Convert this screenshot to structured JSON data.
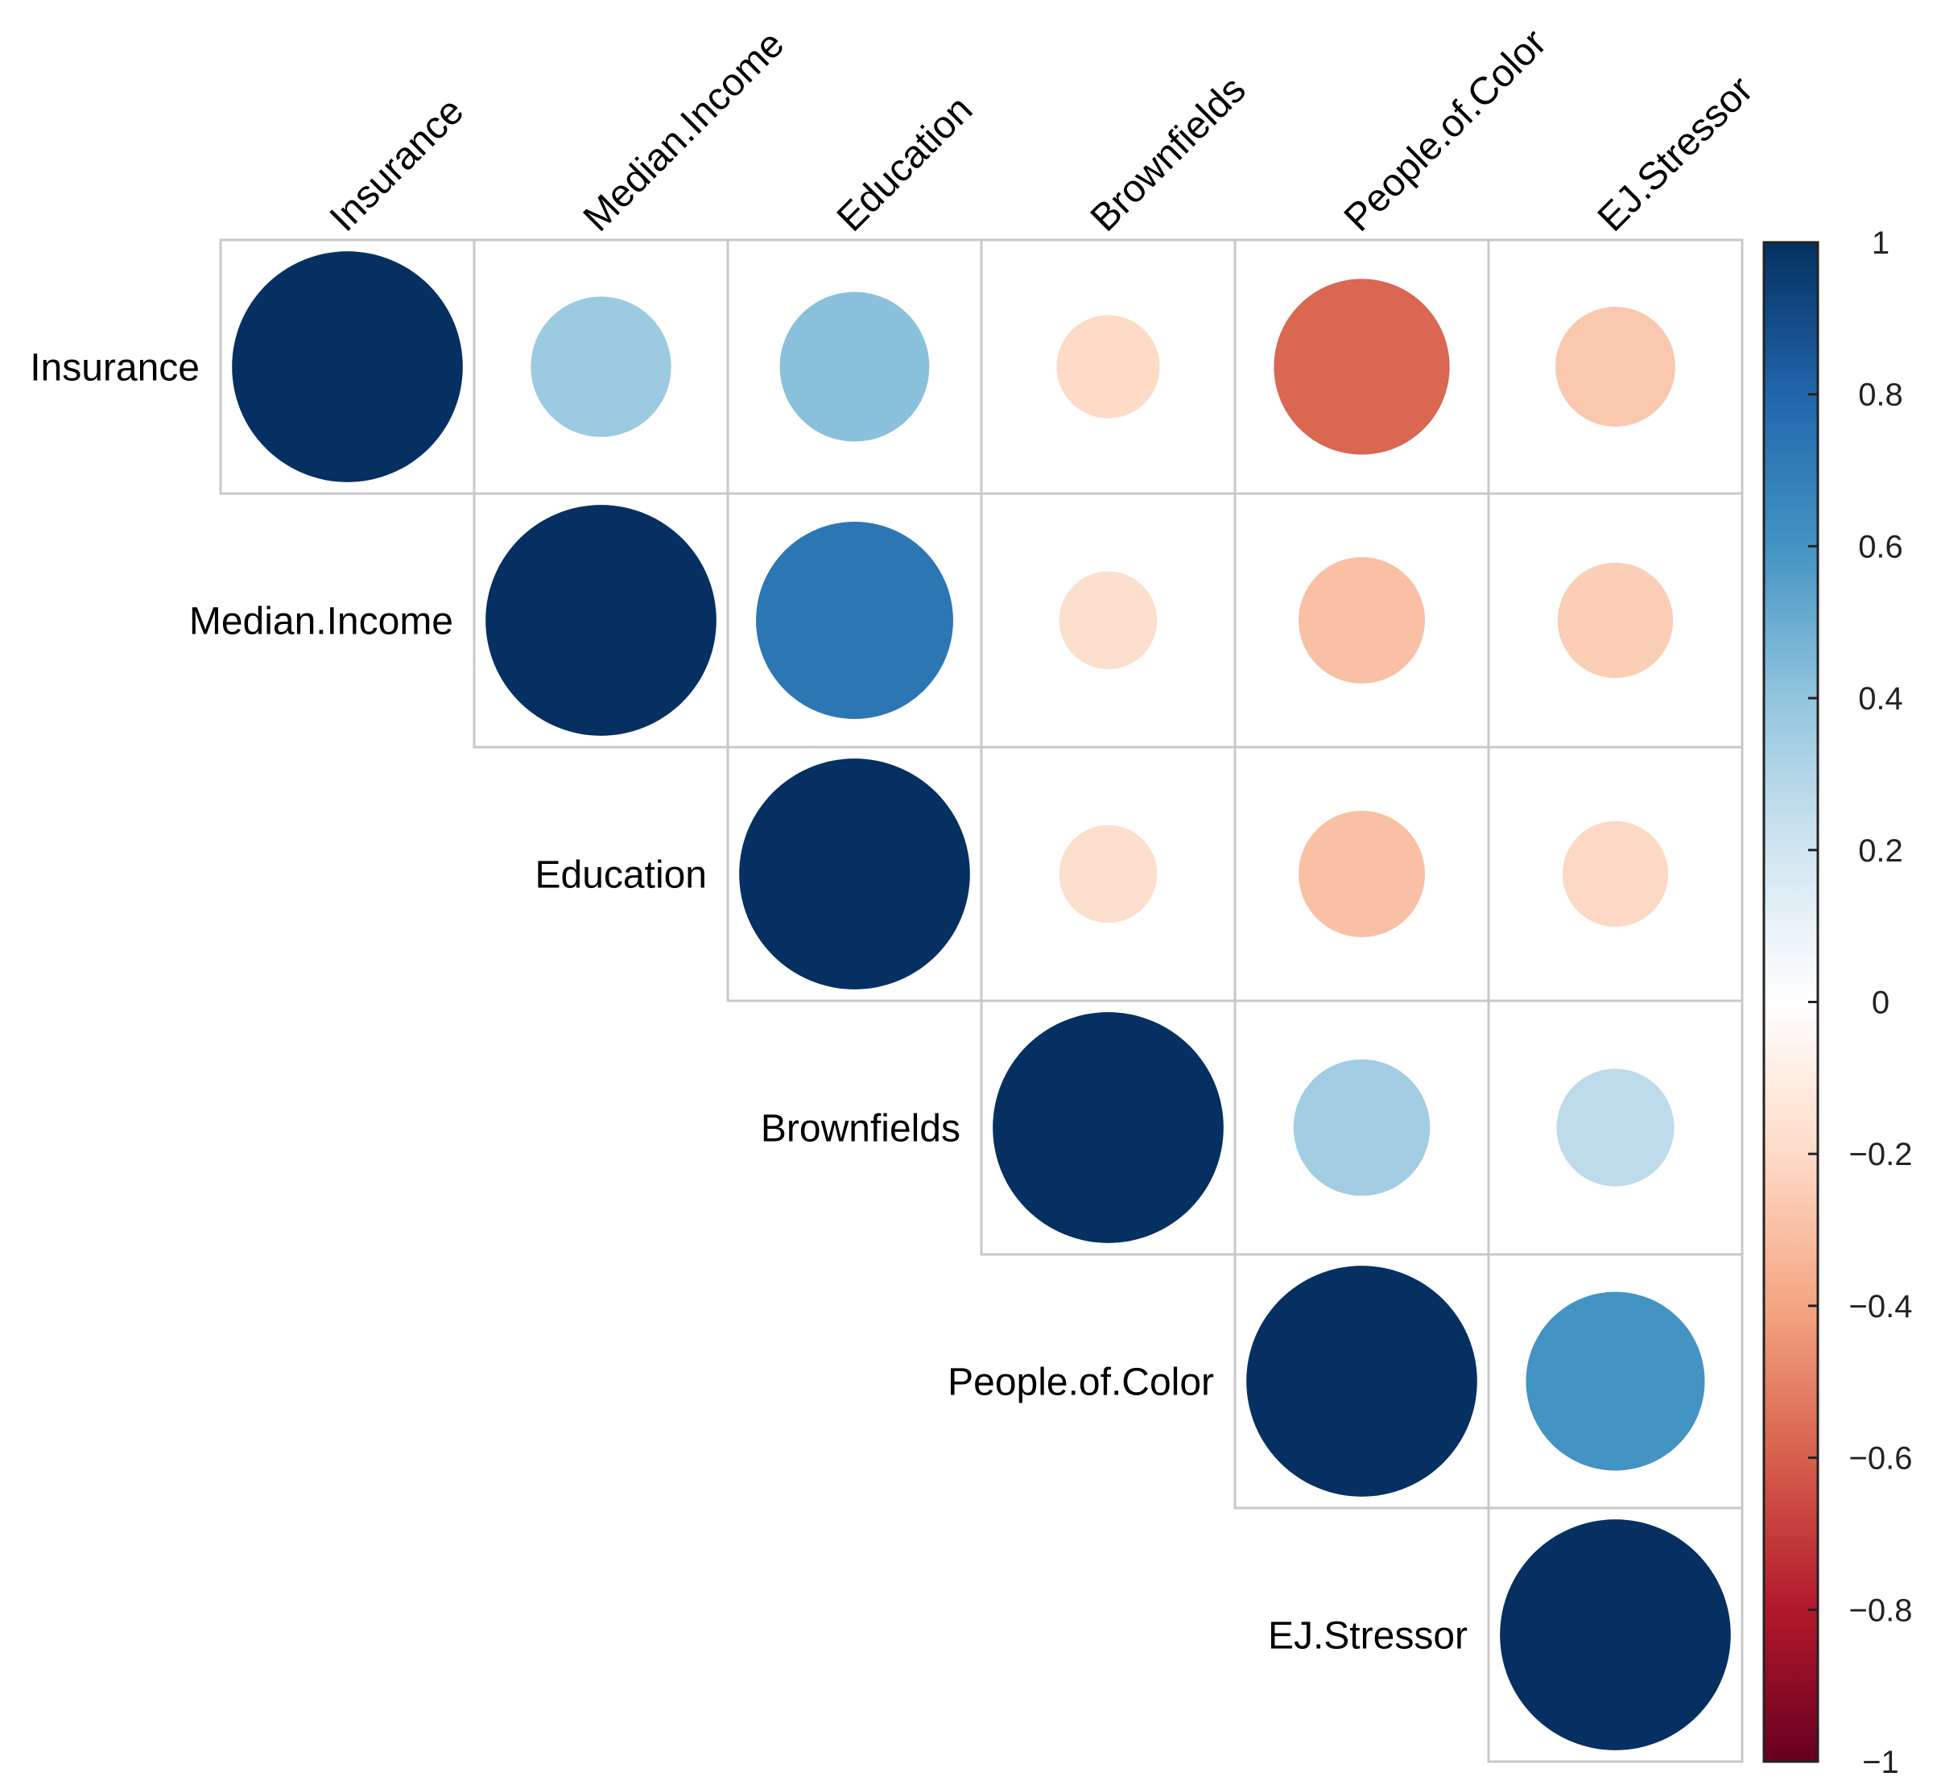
{
  "chart_data": {
    "type": "heatmap",
    "variables": [
      "Insurance",
      "Median.Income",
      "Education",
      "Brownfields",
      "People.of.Color",
      "EJ.Stressor"
    ],
    "matrix": [
      [
        1.0,
        0.37,
        0.42,
        -0.2,
        -0.58,
        -0.27
      ],
      [
        null,
        1.0,
        0.73,
        -0.18,
        -0.3,
        -0.25
      ],
      [
        null,
        null,
        1.0,
        -0.18,
        -0.3,
        -0.21
      ],
      [
        null,
        null,
        null,
        1.0,
        0.35,
        0.26
      ],
      [
        null,
        null,
        null,
        null,
        1.0,
        0.6
      ],
      [
        null,
        null,
        null,
        null,
        null,
        1.0
      ]
    ],
    "display": "upper-triangle",
    "glyph": "circle",
    "colorbar": {
      "min": -1,
      "max": 1,
      "ticks": [
        "1",
        "0.8",
        "0.6",
        "0.4",
        "0.2",
        "0",
        "−0.2",
        "−0.4",
        "−0.6",
        "−0.8",
        "−1"
      ],
      "tick_values": [
        1,
        0.8,
        0.6,
        0.4,
        0.2,
        0,
        -0.2,
        -0.4,
        -0.6,
        -0.8,
        -1
      ],
      "colors": [
        "#67001F",
        "#B2182B",
        "#D6604D",
        "#F4A582",
        "#FDDBC7",
        "#FFFFFF",
        "#D1E5F0",
        "#92C5DE",
        "#4393C3",
        "#2166AC",
        "#053061"
      ]
    }
  }
}
